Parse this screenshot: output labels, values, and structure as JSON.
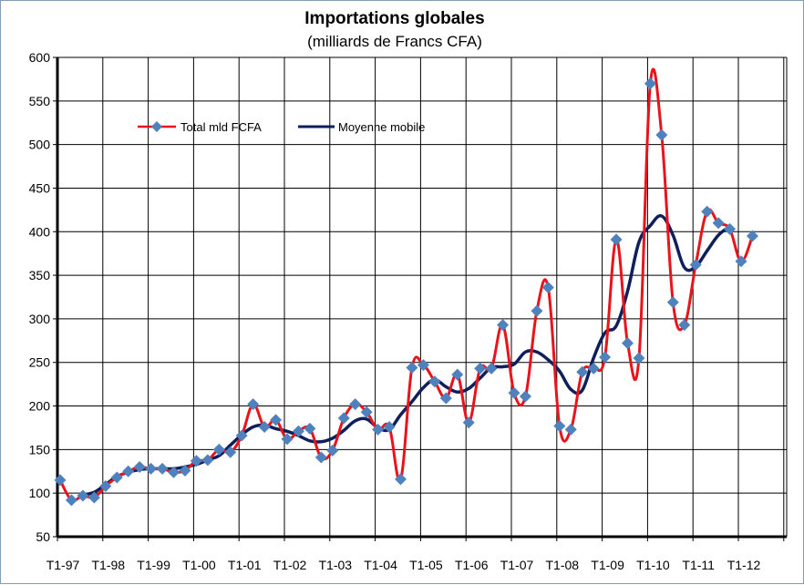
{
  "chart_data": {
    "type": "line",
    "title": "Importations globales",
    "subtitle": "(milliards de Francs CFA)",
    "xlabel": "",
    "ylabel": "",
    "ylim": [
      50,
      600
    ],
    "yticks": [
      50,
      100,
      150,
      200,
      250,
      300,
      350,
      400,
      450,
      500,
      550,
      600
    ],
    "grid": true,
    "legend_position": "top-left",
    "x_tick_labels": [
      "T1-97",
      "T1-98",
      "T1-99",
      "T1-00",
      "T1-01",
      "T1-02",
      "T1-03",
      "T1-04",
      "T1-05",
      "T1-06",
      "T1-07",
      "T1-08",
      "T1-09",
      "T1-10",
      "T1-11",
      "T1-12"
    ],
    "categories": [
      "T1-97",
      "T2-97",
      "T3-97",
      "T4-97",
      "T1-98",
      "T2-98",
      "T3-98",
      "T4-98",
      "T1-99",
      "T2-99",
      "T3-99",
      "T4-99",
      "T1-00",
      "T2-00",
      "T3-00",
      "T4-00",
      "T1-01",
      "T2-01",
      "T3-01",
      "T4-01",
      "T1-02",
      "T2-02",
      "T3-02",
      "T4-02",
      "T1-03",
      "T2-03",
      "T3-03",
      "T4-03",
      "T1-04",
      "T2-04",
      "T3-04",
      "T4-04",
      "T1-05",
      "T2-05",
      "T3-05",
      "T4-05",
      "T1-06",
      "T2-06",
      "T3-06",
      "T4-06",
      "T1-07",
      "T2-07",
      "T3-07",
      "T4-07",
      "T1-08",
      "T2-08",
      "T3-08",
      "T4-08",
      "T1-09",
      "T2-09",
      "T3-09",
      "T4-09",
      "T1-10",
      "T2-10",
      "T3-10",
      "T4-10",
      "T1-11",
      "T2-11",
      "T3-11",
      "T4-11",
      "T1-12",
      "T2-12"
    ],
    "series": [
      {
        "name": "Total mld FCFA",
        "color": "#e8141b",
        "marker_color": "#4f81bd",
        "marker": "diamond",
        "values": [
          115,
          92,
          97,
          95,
          108,
          118,
          125,
          130,
          128,
          128,
          124,
          126,
          137,
          138,
          150,
          147,
          166,
          202,
          176,
          184,
          162,
          171,
          174,
          141,
          149,
          186,
          202,
          193,
          173,
          176,
          116,
          244,
          247,
          228,
          209,
          236,
          181,
          243,
          243,
          293,
          215,
          211,
          309,
          336,
          177,
          173,
          239,
          243,
          256,
          391,
          272,
          255,
          570,
          511,
          319,
          293,
          362,
          423,
          410,
          403,
          366,
          395
        ]
      },
      {
        "name": "Moyenne mobile",
        "color": "#0f1f5c",
        "values": [
          null,
          null,
          98,
          101,
          110,
          119,
          124,
          127,
          128,
          128,
          128,
          130,
          133,
          138,
          143,
          155,
          167,
          176,
          178,
          174,
          171,
          166,
          160,
          159,
          163,
          172,
          183,
          185,
          175,
          173,
          190,
          205,
          221,
          230,
          222,
          216,
          220,
          232,
          244,
          245,
          248,
          262,
          262,
          253,
          240,
          219,
          218,
          255,
          284,
          292,
          332,
          388,
          407,
          418,
          396,
          359,
          360,
          378,
          396,
          406,
          null,
          null
        ]
      }
    ]
  }
}
